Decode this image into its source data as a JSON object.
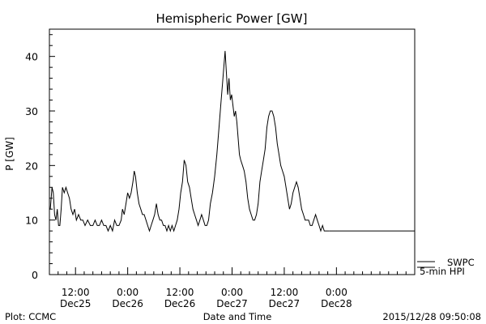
{
  "chart_data": {
    "type": "line",
    "title": "Hemispheric Power [GW]",
    "xlabel": "Date and Time",
    "ylabel": "P [GW]",
    "ylim": [
      0,
      45
    ],
    "xlim_hours": [
      -18,
      66
    ],
    "x_ticks": [
      {
        "hour": -12,
        "time": "12:00",
        "date": "Dec25"
      },
      {
        "hour": 0,
        "time": "0:00",
        "date": "Dec26"
      },
      {
        "hour": 12,
        "time": "12:00",
        "date": "Dec26"
      },
      {
        "hour": 24,
        "time": "0:00",
        "date": "Dec27"
      },
      {
        "hour": 36,
        "time": "12:00",
        "date": "Dec27"
      },
      {
        "hour": 48,
        "time": "0:00",
        "date": "Dec28"
      }
    ],
    "y_ticks": [
      0,
      10,
      20,
      30,
      40
    ],
    "legend_position": "bottom-right, outside plot",
    "series": [
      {
        "name": "5-min HPI",
        "color": "#000000",
        "points": [
          [
            -17.8,
            12
          ],
          [
            -17.4,
            16
          ],
          [
            -17.1,
            15
          ],
          [
            -16.8,
            11
          ],
          [
            -16.5,
            10
          ],
          [
            -16.2,
            12
          ],
          [
            -15.9,
            9
          ],
          [
            -15.6,
            9
          ],
          [
            -15.3,
            12
          ],
          [
            -15.0,
            16
          ],
          [
            -14.6,
            15
          ],
          [
            -14.2,
            16
          ],
          [
            -13.8,
            15
          ],
          [
            -13.4,
            14
          ],
          [
            -13.0,
            12
          ],
          [
            -12.6,
            11
          ],
          [
            -12.2,
            12
          ],
          [
            -11.8,
            10
          ],
          [
            -11.3,
            11
          ],
          [
            -10.8,
            10
          ],
          [
            -10.3,
            10
          ],
          [
            -9.8,
            9
          ],
          [
            -9.2,
            10
          ],
          [
            -8.6,
            9
          ],
          [
            -8.0,
            9
          ],
          [
            -7.5,
            10
          ],
          [
            -7.0,
            9
          ],
          [
            -6.5,
            9
          ],
          [
            -6.0,
            10
          ],
          [
            -5.5,
            9
          ],
          [
            -5.0,
            9
          ],
          [
            -4.5,
            8
          ],
          [
            -4.0,
            9
          ],
          [
            -3.5,
            8
          ],
          [
            -3.0,
            10
          ],
          [
            -2.5,
            9
          ],
          [
            -2.0,
            9
          ],
          [
            -1.5,
            10
          ],
          [
            -1.2,
            12
          ],
          [
            -0.8,
            11
          ],
          [
            -0.4,
            13
          ],
          [
            0.0,
            15
          ],
          [
            0.4,
            14
          ],
          [
            0.8,
            15
          ],
          [
            1.2,
            17
          ],
          [
            1.5,
            19
          ],
          [
            1.8,
            18
          ],
          [
            2.2,
            15
          ],
          [
            2.6,
            13
          ],
          [
            3.0,
            12
          ],
          [
            3.4,
            11
          ],
          [
            3.8,
            11
          ],
          [
            4.2,
            10
          ],
          [
            4.6,
            9
          ],
          [
            5.0,
            8
          ],
          [
            5.4,
            9
          ],
          [
            5.8,
            10
          ],
          [
            6.2,
            11
          ],
          [
            6.6,
            13
          ],
          [
            7.0,
            11
          ],
          [
            7.4,
            10
          ],
          [
            7.8,
            10
          ],
          [
            8.2,
            9
          ],
          [
            8.6,
            9
          ],
          [
            9.0,
            8
          ],
          [
            9.4,
            9
          ],
          [
            9.8,
            8
          ],
          [
            10.2,
            9
          ],
          [
            10.6,
            8
          ],
          [
            11.0,
            9
          ],
          [
            11.4,
            10
          ],
          [
            11.8,
            12
          ],
          [
            12.2,
            15
          ],
          [
            12.6,
            17
          ],
          [
            13.0,
            21
          ],
          [
            13.4,
            20
          ],
          [
            13.8,
            17
          ],
          [
            14.2,
            16
          ],
          [
            14.6,
            14
          ],
          [
            15.0,
            12
          ],
          [
            15.4,
            11
          ],
          [
            15.8,
            10
          ],
          [
            16.2,
            9
          ],
          [
            16.6,
            10
          ],
          [
            17.0,
            11
          ],
          [
            17.4,
            10
          ],
          [
            17.8,
            9
          ],
          [
            18.2,
            9
          ],
          [
            18.6,
            10
          ],
          [
            19.0,
            13
          ],
          [
            19.5,
            15
          ],
          [
            20.0,
            18
          ],
          [
            20.5,
            22
          ],
          [
            21.0,
            27
          ],
          [
            21.4,
            31
          ],
          [
            21.8,
            35
          ],
          [
            22.1,
            38
          ],
          [
            22.4,
            41
          ],
          [
            22.7,
            37
          ],
          [
            23.0,
            33
          ],
          [
            23.3,
            36
          ],
          [
            23.6,
            32
          ],
          [
            23.9,
            33
          ],
          [
            24.2,
            31
          ],
          [
            24.5,
            29
          ],
          [
            24.8,
            30
          ],
          [
            25.1,
            28
          ],
          [
            25.4,
            25
          ],
          [
            25.7,
            22
          ],
          [
            26.0,
            21
          ],
          [
            26.4,
            20
          ],
          [
            26.8,
            19
          ],
          [
            27.2,
            17
          ],
          [
            27.6,
            14
          ],
          [
            28.0,
            12
          ],
          [
            28.4,
            11
          ],
          [
            28.8,
            10
          ],
          [
            29.2,
            10
          ],
          [
            29.6,
            11
          ],
          [
            30.0,
            13
          ],
          [
            30.4,
            17
          ],
          [
            30.8,
            19
          ],
          [
            31.2,
            21
          ],
          [
            31.6,
            23
          ],
          [
            32.0,
            27
          ],
          [
            32.4,
            29
          ],
          [
            32.8,
            30
          ],
          [
            33.2,
            30
          ],
          [
            33.6,
            29
          ],
          [
            34.0,
            27
          ],
          [
            34.4,
            24
          ],
          [
            34.8,
            22
          ],
          [
            35.2,
            20
          ],
          [
            35.6,
            19
          ],
          [
            36.0,
            18
          ],
          [
            36.4,
            16
          ],
          [
            36.8,
            14
          ],
          [
            37.2,
            12
          ],
          [
            37.6,
            13
          ],
          [
            38.0,
            15
          ],
          [
            38.4,
            16
          ],
          [
            38.8,
            17
          ],
          [
            39.2,
            16
          ],
          [
            39.6,
            14
          ],
          [
            40.0,
            12
          ],
          [
            40.4,
            11
          ],
          [
            40.8,
            10
          ],
          [
            41.2,
            10
          ],
          [
            41.6,
            10
          ],
          [
            42.0,
            9
          ],
          [
            42.4,
            9
          ],
          [
            42.8,
            10
          ],
          [
            43.2,
            11
          ],
          [
            43.6,
            10
          ],
          [
            44.0,
            9
          ],
          [
            44.4,
            8
          ],
          [
            44.8,
            9
          ],
          [
            45.2,
            8
          ],
          [
            45.6,
            8
          ],
          [
            46.0,
            8
          ],
          [
            46.4,
            8
          ]
        ]
      },
      {
        "name": "SWPC",
        "color": "#000000",
        "points": [
          [
            46.4,
            8
          ],
          [
            66.0,
            8
          ]
        ]
      }
    ],
    "legend": [
      {
        "label": "SWPC"
      },
      {
        "label": "5-min HPI"
      }
    ]
  },
  "footer": {
    "left": "Plot: CCMC",
    "center": "Date and Time",
    "right": "2015/12/28 09:50:08"
  }
}
